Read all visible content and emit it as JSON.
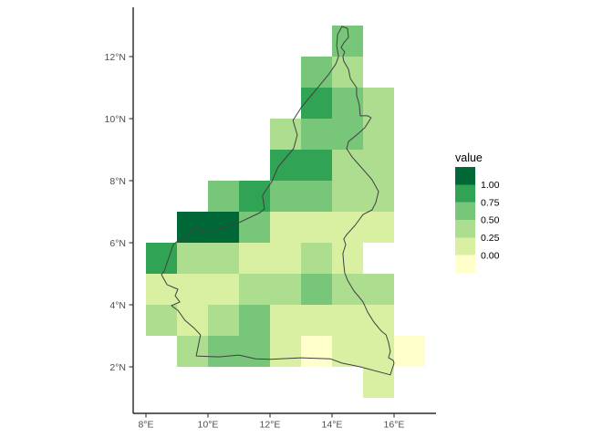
{
  "chart_data": {
    "type": "heatmap",
    "title": "",
    "xlabel": "",
    "ylabel": "",
    "x_ticks": [
      "8°E",
      "10°E",
      "12°E",
      "14°E",
      "16°E"
    ],
    "x_tick_values": [
      8,
      10,
      12,
      14,
      16
    ],
    "y_ticks": [
      "2°N",
      "4°N",
      "6°N",
      "8°N",
      "10°N",
      "12°N"
    ],
    "y_tick_values": [
      2,
      4,
      6,
      8,
      10,
      12
    ],
    "xlim": [
      7.588,
      17.353
    ],
    "ylim": [
      0.5,
      13.588
    ],
    "grid": "off",
    "cell_size_degrees": 1,
    "colors": {
      "background": "#ffffff",
      "axis_line": "#000000",
      "tick_mark": "#333333",
      "tick_label": "#4d4d4d",
      "outline": "#404040",
      "legend_text": "#000000"
    },
    "bins": {
      "g1": "#ffffcc",
      "g2": "#d9f0a3",
      "g3": "#addd8e",
      "g4": "#78c679",
      "g5": "#31a354",
      "g6": "#006837"
    },
    "bin_values": {
      "g1": 0.0,
      "g2": 0.15,
      "g3": 0.4,
      "g4": 0.6,
      "g5": 0.85,
      "g6": 1.0
    },
    "bin_ranges": {
      "g1": "< 0.00",
      "g2": "0.00-0.25",
      "g3": "0.25-0.50",
      "g4": "0.50-0.75",
      "g5": "0.75-1.00",
      "g6": "> 1.00"
    },
    "legend": {
      "title": "value",
      "position": "right",
      "labels": [
        "1.00",
        "0.75",
        "0.50",
        "0.25",
        "0.00"
      ],
      "colors_top_to_bottom": [
        "#006837",
        "#31a354",
        "#78c679",
        "#addd8e",
        "#d9f0a3",
        "#ffffcc"
      ]
    },
    "cells": [
      {
        "lon": 14,
        "lat": 12,
        "bin": "g4"
      },
      {
        "lon": 13,
        "lat": 11,
        "bin": "g4"
      },
      {
        "lon": 14,
        "lat": 11,
        "bin": "g3"
      },
      {
        "lon": 13,
        "lat": 10,
        "bin": "g5"
      },
      {
        "lon": 14,
        "lat": 10,
        "bin": "g4"
      },
      {
        "lon": 15,
        "lat": 10,
        "bin": "g3"
      },
      {
        "lon": 12,
        "lat": 9,
        "bin": "g3"
      },
      {
        "lon": 13,
        "lat": 9,
        "bin": "g4"
      },
      {
        "lon": 14,
        "lat": 9,
        "bin": "g4"
      },
      {
        "lon": 15,
        "lat": 9,
        "bin": "g3"
      },
      {
        "lon": 12,
        "lat": 8,
        "bin": "g5"
      },
      {
        "lon": 13,
        "lat": 8,
        "bin": "g5"
      },
      {
        "lon": 14,
        "lat": 8,
        "bin": "g3"
      },
      {
        "lon": 15,
        "lat": 8,
        "bin": "g3"
      },
      {
        "lon": 10,
        "lat": 7,
        "bin": "g4"
      },
      {
        "lon": 11,
        "lat": 7,
        "bin": "g5"
      },
      {
        "lon": 12,
        "lat": 7,
        "bin": "g4"
      },
      {
        "lon": 13,
        "lat": 7,
        "bin": "g4"
      },
      {
        "lon": 14,
        "lat": 7,
        "bin": "g3"
      },
      {
        "lon": 15,
        "lat": 7,
        "bin": "g3"
      },
      {
        "lon": 9,
        "lat": 6,
        "bin": "g6"
      },
      {
        "lon": 10,
        "lat": 6,
        "bin": "g6"
      },
      {
        "lon": 11,
        "lat": 6,
        "bin": "g4"
      },
      {
        "lon": 12,
        "lat": 6,
        "bin": "g2"
      },
      {
        "lon": 13,
        "lat": 6,
        "bin": "g2"
      },
      {
        "lon": 14,
        "lat": 6,
        "bin": "g2"
      },
      {
        "lon": 15,
        "lat": 6,
        "bin": "g2"
      },
      {
        "lon": 8,
        "lat": 5,
        "bin": "g5"
      },
      {
        "lon": 9,
        "lat": 5,
        "bin": "g3"
      },
      {
        "lon": 10,
        "lat": 5,
        "bin": "g3"
      },
      {
        "lon": 11,
        "lat": 5,
        "bin": "g2"
      },
      {
        "lon": 12,
        "lat": 5,
        "bin": "g2"
      },
      {
        "lon": 13,
        "lat": 5,
        "bin": "g3"
      },
      {
        "lon": 14,
        "lat": 5,
        "bin": "g2"
      },
      {
        "lon": 8,
        "lat": 4,
        "bin": "g2"
      },
      {
        "lon": 9,
        "lat": 4,
        "bin": "g2"
      },
      {
        "lon": 10,
        "lat": 4,
        "bin": "g2"
      },
      {
        "lon": 11,
        "lat": 4,
        "bin": "g3"
      },
      {
        "lon": 12,
        "lat": 4,
        "bin": "g3"
      },
      {
        "lon": 13,
        "lat": 4,
        "bin": "g4"
      },
      {
        "lon": 14,
        "lat": 4,
        "bin": "g3"
      },
      {
        "lon": 15,
        "lat": 4,
        "bin": "g3"
      },
      {
        "lon": 8,
        "lat": 3,
        "bin": "g3"
      },
      {
        "lon": 9,
        "lat": 3,
        "bin": "g2"
      },
      {
        "lon": 10,
        "lat": 3,
        "bin": "g3"
      },
      {
        "lon": 11,
        "lat": 3,
        "bin": "g4"
      },
      {
        "lon": 12,
        "lat": 3,
        "bin": "g2"
      },
      {
        "lon": 13,
        "lat": 3,
        "bin": "g2"
      },
      {
        "lon": 14,
        "lat": 3,
        "bin": "g2"
      },
      {
        "lon": 15,
        "lat": 3,
        "bin": "g2"
      },
      {
        "lon": 9,
        "lat": 2,
        "bin": "g3"
      },
      {
        "lon": 10,
        "lat": 2,
        "bin": "g4"
      },
      {
        "lon": 11,
        "lat": 2,
        "bin": "g4"
      },
      {
        "lon": 12,
        "lat": 2,
        "bin": "g2"
      },
      {
        "lon": 13,
        "lat": 2,
        "bin": "g1"
      },
      {
        "lon": 14,
        "lat": 2,
        "bin": "g2"
      },
      {
        "lon": 15,
        "lat": 2,
        "bin": "g2"
      },
      {
        "lon": 16,
        "lat": 2,
        "bin": "g1"
      },
      {
        "lon": 15,
        "lat": 1,
        "bin": "g2"
      }
    ],
    "outline": [
      [
        14.32,
        12.97
      ],
      [
        14.5,
        12.91
      ],
      [
        14.53,
        12.62
      ],
      [
        14.38,
        12.44
      ],
      [
        14.29,
        12.29
      ],
      [
        14.41,
        12.15
      ],
      [
        14.35,
        12.0
      ],
      [
        14.38,
        11.85
      ],
      [
        14.53,
        11.59
      ],
      [
        14.59,
        11.29
      ],
      [
        14.79,
        11.0
      ],
      [
        14.79,
        10.76
      ],
      [
        14.88,
        10.44
      ],
      [
        14.91,
        10.09
      ],
      [
        15.15,
        10.09
      ],
      [
        15.26,
        10.03
      ],
      [
        15.06,
        9.71
      ],
      [
        14.79,
        9.47
      ],
      [
        14.53,
        9.26
      ],
      [
        14.47,
        9.03
      ],
      [
        14.65,
        8.76
      ],
      [
        14.88,
        8.5
      ],
      [
        15.09,
        8.26
      ],
      [
        15.29,
        8.03
      ],
      [
        15.5,
        7.65
      ],
      [
        15.41,
        7.29
      ],
      [
        15.29,
        7.06
      ],
      [
        15.0,
        6.91
      ],
      [
        14.74,
        6.56
      ],
      [
        14.47,
        6.26
      ],
      [
        14.38,
        6.12
      ],
      [
        14.44,
        5.94
      ],
      [
        14.35,
        5.65
      ],
      [
        14.38,
        5.29
      ],
      [
        14.41,
        5.03
      ],
      [
        14.5,
        4.79
      ],
      [
        14.71,
        4.44
      ],
      [
        14.88,
        4.24
      ],
      [
        15.0,
        4.09
      ],
      [
        15.15,
        3.76
      ],
      [
        15.35,
        3.44
      ],
      [
        15.59,
        3.15
      ],
      [
        15.74,
        3.03
      ],
      [
        15.82,
        2.79
      ],
      [
        15.88,
        2.5
      ],
      [
        15.82,
        2.29
      ],
      [
        15.97,
        2.21
      ],
      [
        16.0,
        2.12
      ],
      [
        15.88,
        1.74
      ],
      [
        14.91,
        2.0
      ],
      [
        14.32,
        2.12
      ],
      [
        13.94,
        2.26
      ],
      [
        13.0,
        2.29
      ],
      [
        12.0,
        2.24
      ],
      [
        11.53,
        2.26
      ],
      [
        11.0,
        2.38
      ],
      [
        10.35,
        2.32
      ],
      [
        9.62,
        2.35
      ],
      [
        9.76,
        3.03
      ],
      [
        9.56,
        3.24
      ],
      [
        9.26,
        3.5
      ],
      [
        9.03,
        3.82
      ],
      [
        8.82,
        3.97
      ],
      [
        9.09,
        4.09
      ],
      [
        8.94,
        4.29
      ],
      [
        9.03,
        4.5
      ],
      [
        8.68,
        4.65
      ],
      [
        8.5,
        4.97
      ],
      [
        8.59,
        5.09
      ],
      [
        8.74,
        5.53
      ],
      [
        8.88,
        5.94
      ],
      [
        9.03,
        6.06
      ],
      [
        9.32,
        6.18
      ],
      [
        9.53,
        6.47
      ],
      [
        10.0,
        6.35
      ],
      [
        10.88,
        6.59
      ],
      [
        11.68,
        6.97
      ],
      [
        11.82,
        7.09
      ],
      [
        11.76,
        7.53
      ],
      [
        12.06,
        7.97
      ],
      [
        12.26,
        8.44
      ],
      [
        12.76,
        9.03
      ],
      [
        12.88,
        9.47
      ],
      [
        12.74,
        9.94
      ],
      [
        13.0,
        10.35
      ],
      [
        13.44,
        10.88
      ],
      [
        13.88,
        11.41
      ],
      [
        14.12,
        11.76
      ],
      [
        14.21,
        12.0
      ],
      [
        14.15,
        12.35
      ],
      [
        14.18,
        12.71
      ]
    ]
  }
}
